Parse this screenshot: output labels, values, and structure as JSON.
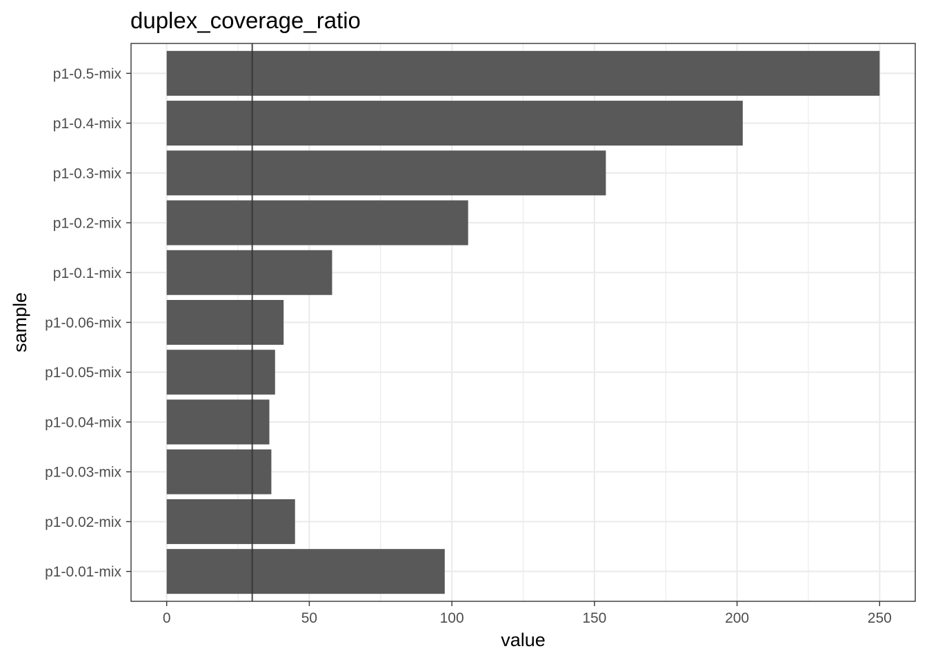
{
  "chart_data": {
    "type": "bar",
    "orientation": "horizontal",
    "title": "duplex_coverage_ratio",
    "xlabel": "value",
    "ylabel": "sample",
    "categories": [
      "p1-0.01-mix",
      "p1-0.02-mix",
      "p1-0.03-mix",
      "p1-0.04-mix",
      "p1-0.05-mix",
      "p1-0.06-mix",
      "p1-0.1-mix",
      "p1-0.2-mix",
      "p1-0.3-mix",
      "p1-0.4-mix",
      "p1-0.5-mix"
    ],
    "values": [
      97.5,
      45,
      36.7,
      36,
      38,
      41,
      58,
      105.7,
      154,
      202,
      250
    ],
    "xlim": [
      -12.5,
      262.5
    ],
    "xticks": [
      0,
      50,
      100,
      150,
      200,
      250
    ],
    "xtick_labels": [
      "0",
      "50",
      "100",
      "150",
      "200",
      "250"
    ],
    "reference_line": {
      "x": 30,
      "orientation": "vertical",
      "color": "#333333"
    },
    "bar_color": "#595959",
    "grid": true,
    "legend": "none",
    "theme": "bw"
  }
}
